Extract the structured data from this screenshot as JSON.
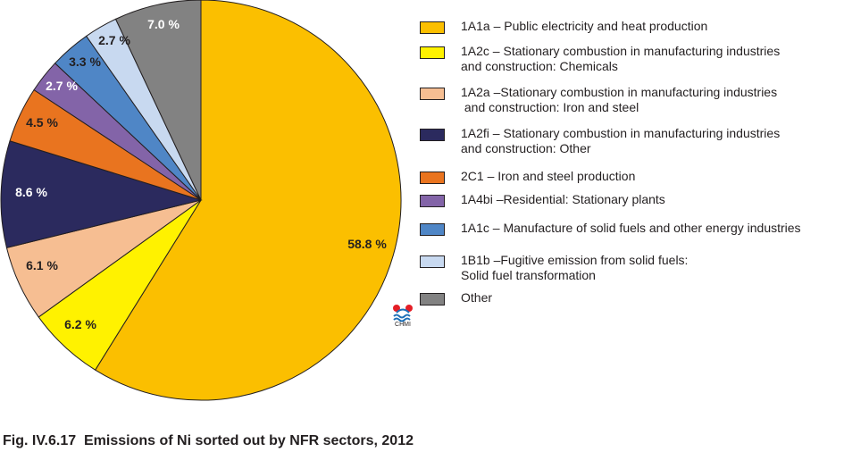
{
  "chart_data": {
    "type": "pie",
    "title": "",
    "slices": [
      {
        "label": "1A1a – Public electricity and heat production",
        "value": 58.8,
        "value_label": "58.8 %",
        "color": "#fbbf00"
      },
      {
        "label": "1A2c – Stationary combustion in manufacturing industries\nand construction: Chemicals",
        "value": 6.2,
        "value_label": "6.2 %",
        "color": "#fff200"
      },
      {
        "label": "1A2a –Stationary combustion in manufacturing industries\n and construction: Iron and steel",
        "value": 6.1,
        "value_label": "6.1 %",
        "color": "#f6be92"
      },
      {
        "label": "1A2fi – Stationary combustion in manufacturing industries\nand construction: Other",
        "value": 8.6,
        "value_label": "8.6 %",
        "color": "#2b2a5e"
      },
      {
        "label": "2C1 – Iron and steel production",
        "value": 4.5,
        "value_label": "4.5 %",
        "color": "#e9741f"
      },
      {
        "label": "1A4bi –Residential: Stationary plants",
        "value": 2.7,
        "value_label": "2.7 %",
        "color": "#8364a8"
      },
      {
        "label": "1A1c – Manufacture of solid fuels and other energy industries",
        "value": 3.3,
        "value_label": "3.3 %",
        "color": "#4f86c6"
      },
      {
        "label": "1B1b –Fugitive emission from solid fuels:\nSolid fuel transformation",
        "value": 2.7,
        "value_label": "2.7 %",
        "color": "#c8d9f0"
      },
      {
        "label": "Other",
        "value": 7.0,
        "value_label": "7.0 %",
        "color": "#828282"
      }
    ],
    "legend_position": "right"
  },
  "logo": {
    "text": "CHMI"
  },
  "caption": "Fig. IV.6.17  Emissions of Ni sorted out by NFR sectors, 2012"
}
